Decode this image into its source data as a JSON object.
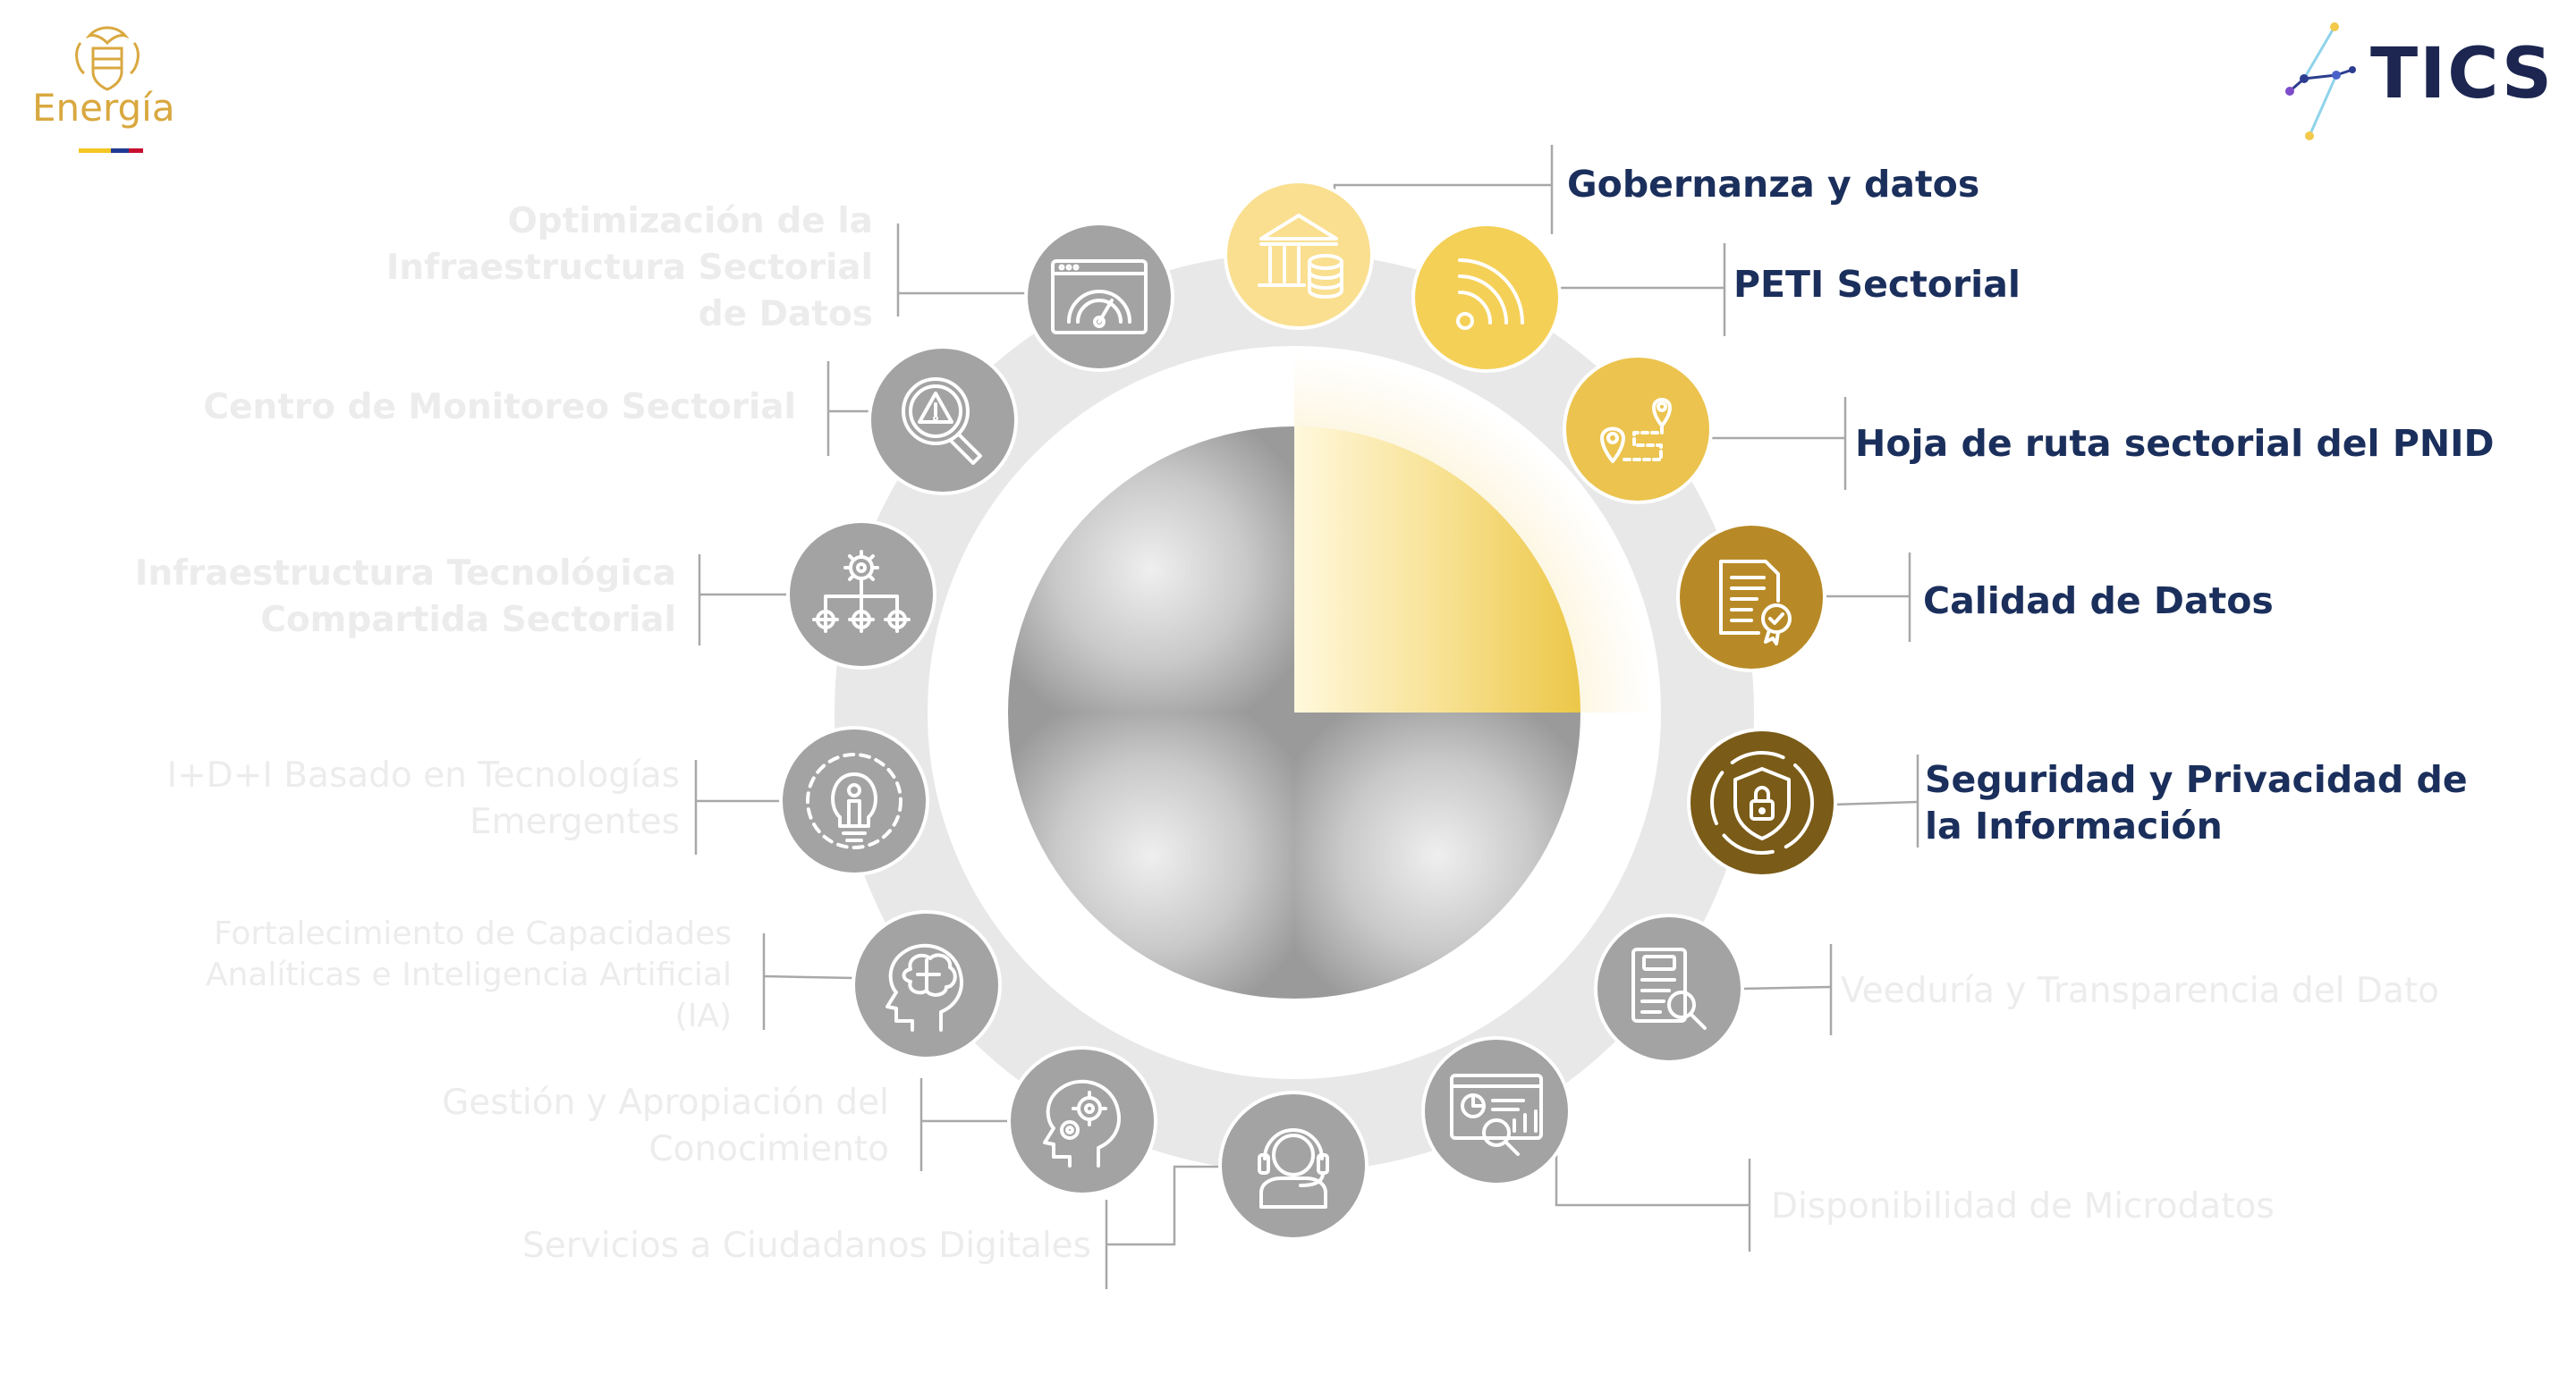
{
  "header": {
    "left_logo": {
      "name": "Energía",
      "icon": "colombia-coat-of-arms-icon",
      "flag_colors": [
        "#f3c623",
        "#1f3a93",
        "#c8102e"
      ]
    },
    "right_logo": {
      "name": "TICS",
      "icon": "network-nodes-icon"
    }
  },
  "colors": {
    "active_text": "#1b2f5c",
    "faded_text": "#ececec",
    "gray_icon": "#a3a3a3",
    "ring": "#e8e8e8",
    "gold_light": "#f9df8f",
    "gold_mid": "#f5d057",
    "gold": "#ebc34e",
    "gold_dark": "#b88a27",
    "gold_darkest": "#7a5b17"
  },
  "items": [
    {
      "id": "gobernanza",
      "label": "Gobernanza y datos",
      "icon": "bank-database-icon",
      "active": true
    },
    {
      "id": "peti",
      "label": "PETI Sectorial",
      "icon": "wifi-signal-icon",
      "active": true
    },
    {
      "id": "hoja-ruta",
      "label": "Hoja de ruta sectorial del PNID",
      "icon": "route-map-pins-icon",
      "active": true
    },
    {
      "id": "calidad",
      "label": "Calidad de Datos",
      "icon": "certificate-document-icon",
      "active": true
    },
    {
      "id": "seguridad",
      "label": "Seguridad y Privacidad de\nla Información",
      "icon": "shield-lock-icon",
      "active": true
    },
    {
      "id": "veeduria",
      "label": "Veeduría y Transparencia del Dato",
      "icon": "audit-clipboard-icon",
      "active": false
    },
    {
      "id": "microdatos",
      "label": "Disponibilidad de Microdatos",
      "icon": "analytics-dashboard-icon",
      "active": false
    },
    {
      "id": "ciudadanos",
      "label": "Servicios a Ciudadanos Digitales",
      "icon": "customer-support-icon",
      "active": false
    },
    {
      "id": "conocimiento",
      "label": "Gestión y Apropiación del\nConocimiento",
      "icon": "head-gears-icon",
      "active": false
    },
    {
      "id": "capacidades",
      "label": "Fortalecimiento de Capacidades\nAnalíticas e Inteligencia Artificial\n(IA)",
      "icon": "brain-head-icon",
      "active": false
    },
    {
      "id": "idi",
      "label": "I+D+I Basado en Tecnologías\nEmergentes",
      "icon": "lightbulb-gear-icon",
      "active": false
    },
    {
      "id": "infra-compartida",
      "label": "Infraestructura Tecnológica\nCompartida Sectorial",
      "icon": "gear-hierarchy-icon",
      "active": false
    },
    {
      "id": "monitoreo",
      "label": "Centro de Monitoreo Sectorial",
      "icon": "alert-magnifier-icon",
      "active": false
    },
    {
      "id": "optimizacion",
      "label": "Optimización de la\nInfraestructura Sectorial\nde Datos",
      "icon": "speedometer-window-icon",
      "active": false
    }
  ],
  "center": {
    "quadrants": 4,
    "highlighted_quadrant": "top-right"
  }
}
